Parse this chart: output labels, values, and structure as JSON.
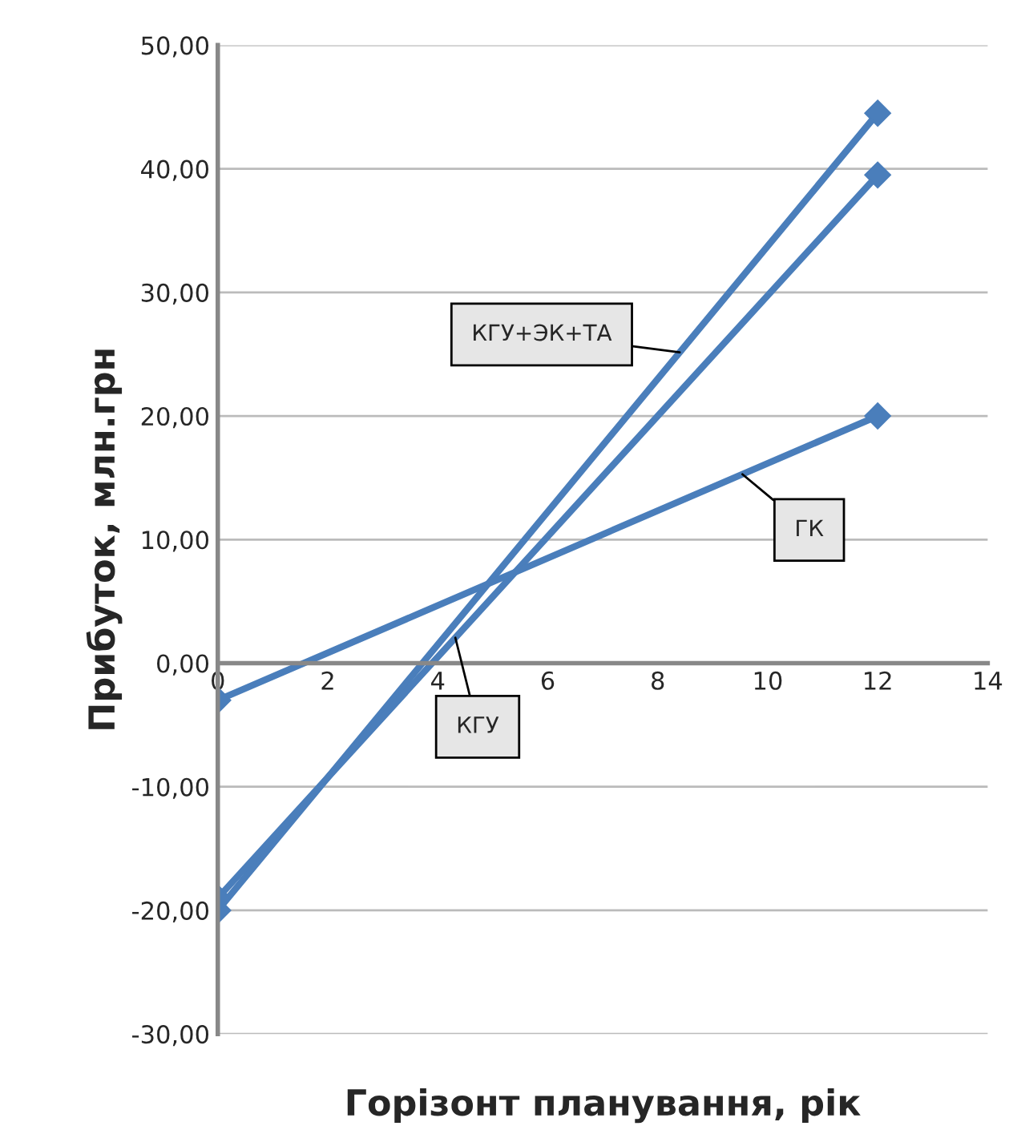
{
  "chart_data": {
    "type": "line",
    "xlabel": "Горізонт планування, рік",
    "ylabel": "Прибуток, млн.грн",
    "x": [
      0,
      12
    ],
    "series": [
      {
        "name": "КГУ+ЭК+ТА",
        "color": "#4a7ebb",
        "values": [
          -20,
          44.5
        ]
      },
      {
        "name": "КГУ",
        "color": "#4a7ebb",
        "values": [
          -19,
          39.5
        ]
      },
      {
        "name": "ГК",
        "color": "#4a7ebb",
        "values": [
          -3,
          20
        ]
      }
    ],
    "xlim": [
      0,
      14
    ],
    "xticks": [
      0,
      2,
      4,
      6,
      8,
      10,
      12,
      14
    ],
    "ylim": [
      -30,
      50
    ],
    "yticks": [
      {
        "value": -30,
        "label": "-30,00"
      },
      {
        "value": -20,
        "label": "-20,00"
      },
      {
        "value": -10,
        "label": "-10,00"
      },
      {
        "value": 0,
        "label": "0,00"
      },
      {
        "value": 10,
        "label": "10,00"
      },
      {
        "value": 20,
        "label": "20,00"
      },
      {
        "value": 30,
        "label": "30,00"
      },
      {
        "value": 40,
        "label": "40,00"
      },
      {
        "value": 50,
        "label": "50,00"
      }
    ],
    "grid": "y",
    "marker": "diamond",
    "line_style": "solid",
    "legend": false
  }
}
